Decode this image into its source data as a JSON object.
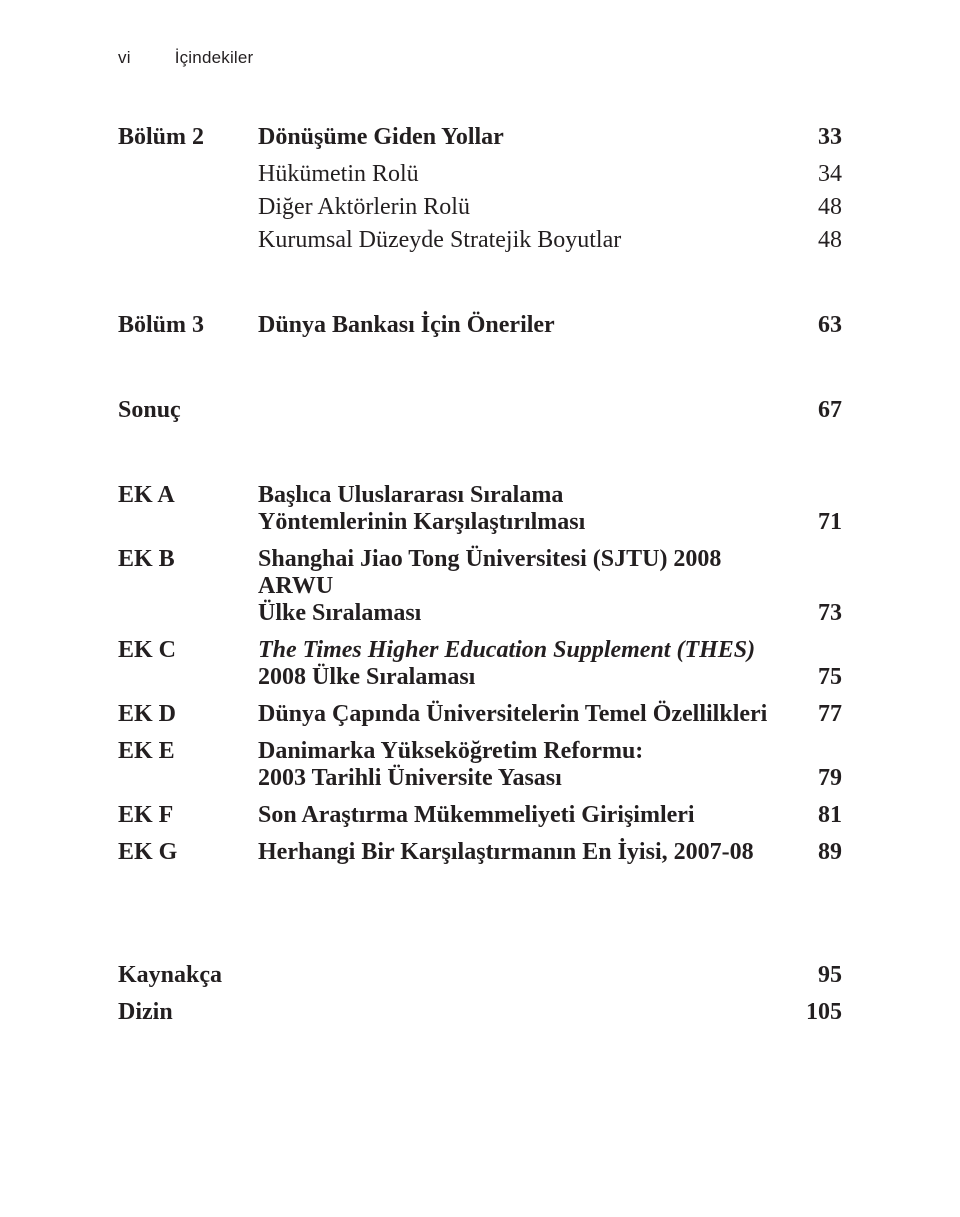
{
  "runningHead": {
    "folio": "vi",
    "section": "İçindekiler"
  },
  "b2": {
    "label": "Bölüm 2",
    "title": "Dönüşüme Giden Yollar",
    "page": "33",
    "subs": [
      {
        "title": "Hükümetin Rolü",
        "page": "34"
      },
      {
        "title": "Diğer Aktörlerin Rolü",
        "page": "48"
      },
      {
        "title": "Kurumsal Düzeyde Stratejik Boyutlar",
        "page": "48"
      }
    ]
  },
  "b3": {
    "label": "Bölüm 3",
    "title": "Dünya Bankası İçin Öneriler",
    "page": "63"
  },
  "sonuc": {
    "label": "Sonuç",
    "page": "67"
  },
  "ekA": {
    "label": "EK A",
    "l1": "Başlıca Uluslararası Sıralama",
    "l2": "Yöntemlerinin Karşılaştırılması",
    "page": "71"
  },
  "ekB": {
    "label": "EK B",
    "l1": "Shanghai Jiao Tong Üniversitesi (SJTU) 2008 ARWU",
    "l2": "Ülke Sıralaması",
    "page": "73"
  },
  "ekC": {
    "label": "EK C",
    "l1": "The Times Higher Education Supplement (THES)",
    "l2": "2008 Ülke Sıralaması",
    "page": "75"
  },
  "ekD": {
    "label": "EK D",
    "l1": "Dünya Çapında Üniversitelerin Temel Özellilkleri",
    "page": "77"
  },
  "ekE": {
    "label": "EK E",
    "l1": "Danimarka Yükseköğretim Reformu:",
    "l2": "2003 Tarihli Üniversite Yasası",
    "page": "79"
  },
  "ekF": {
    "label": "EK F",
    "l1": "Son Araştırma Mükemmeliyeti Girişimleri",
    "page": "81"
  },
  "ekG": {
    "label": "EK G",
    "l1": "Herhangi Bir Karşılaştırmanın En İyisi, 2007-08",
    "page": "89"
  },
  "kaynakca": {
    "label": "Kaynakça",
    "page": "95"
  },
  "dizin": {
    "label": "Dizin",
    "page": "105"
  }
}
